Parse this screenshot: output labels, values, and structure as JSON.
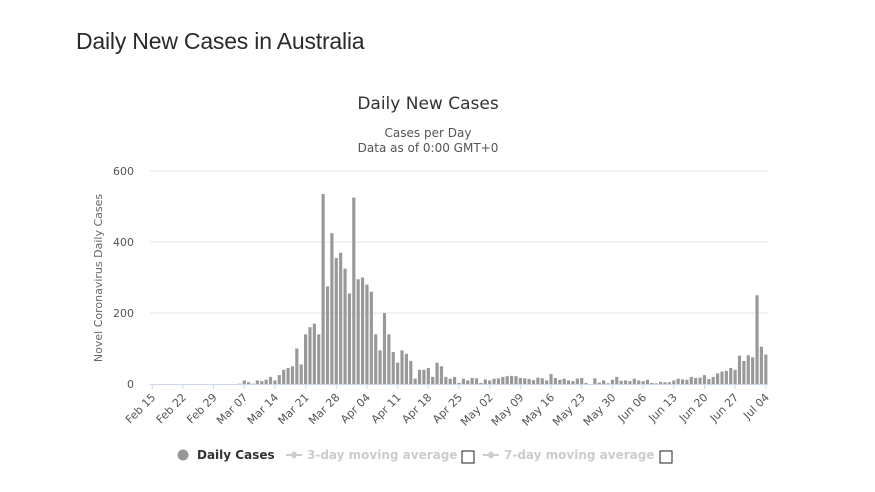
{
  "page": {
    "heading": "Daily New Cases in Australia"
  },
  "chart_data": {
    "type": "bar",
    "title": "Daily New Cases",
    "subtitle": [
      "Cases per Day",
      "Data as of 0:00 GMT+0"
    ],
    "ylabel": "Novel Coronavirus Daily Cases",
    "xlabel": "",
    "ylim": [
      0,
      600
    ],
    "yticks": [
      0,
      200,
      400,
      600
    ],
    "grid": true,
    "bar_color": "#999999",
    "start_date": "Feb 15",
    "xtick_labels": [
      "Feb 15",
      "Feb 22",
      "Feb 29",
      "Mar 07",
      "Mar 14",
      "Mar 21",
      "Mar 28",
      "Apr 04",
      "Apr 11",
      "Apr 18",
      "Apr 25",
      "May 02",
      "May 09",
      "May 16",
      "May 23",
      "May 30",
      "Jun 06",
      "Jun 13",
      "Jun 20",
      "Jun 27",
      "Jul 04"
    ],
    "series": [
      {
        "name": "Daily Cases",
        "values": [
          0,
          0,
          0,
          0,
          0,
          0,
          0,
          0,
          0,
          0,
          0,
          0,
          0,
          0,
          0,
          0,
          0,
          0,
          0,
          0,
          1,
          10,
          5,
          1,
          10,
          8,
          12,
          20,
          10,
          25,
          40,
          45,
          50,
          100,
          55,
          140,
          160,
          170,
          140,
          535,
          275,
          425,
          355,
          370,
          325,
          255,
          525,
          295,
          300,
          280,
          260,
          140,
          95,
          200,
          140,
          90,
          60,
          95,
          85,
          65,
          15,
          40,
          40,
          45,
          20,
          60,
          50,
          20,
          15,
          20,
          3,
          15,
          10,
          17,
          16,
          3,
          13,
          10,
          15,
          16,
          20,
          22,
          23,
          22,
          17,
          16,
          14,
          11,
          18,
          16,
          10,
          28,
          17,
          12,
          15,
          10,
          8,
          15,
          17,
          3,
          0,
          16,
          4,
          10,
          2,
          12,
          20,
          9,
          10,
          8,
          15,
          10,
          8,
          12,
          3,
          2,
          6,
          5,
          5,
          10,
          15,
          13,
          12,
          20,
          17,
          18,
          25,
          14,
          20,
          30,
          35,
          37,
          45,
          40,
          80,
          65,
          81,
          75,
          250,
          105,
          83
        ]
      }
    ],
    "legend": {
      "placement": "bottom",
      "items": [
        {
          "label": "Daily Cases",
          "color": "#999999",
          "active": true
        },
        {
          "label": "3-day moving average",
          "color": "#cccccc",
          "active": false
        },
        {
          "label": "7-day moving average",
          "color": "#cccccc",
          "active": false
        }
      ]
    }
  }
}
